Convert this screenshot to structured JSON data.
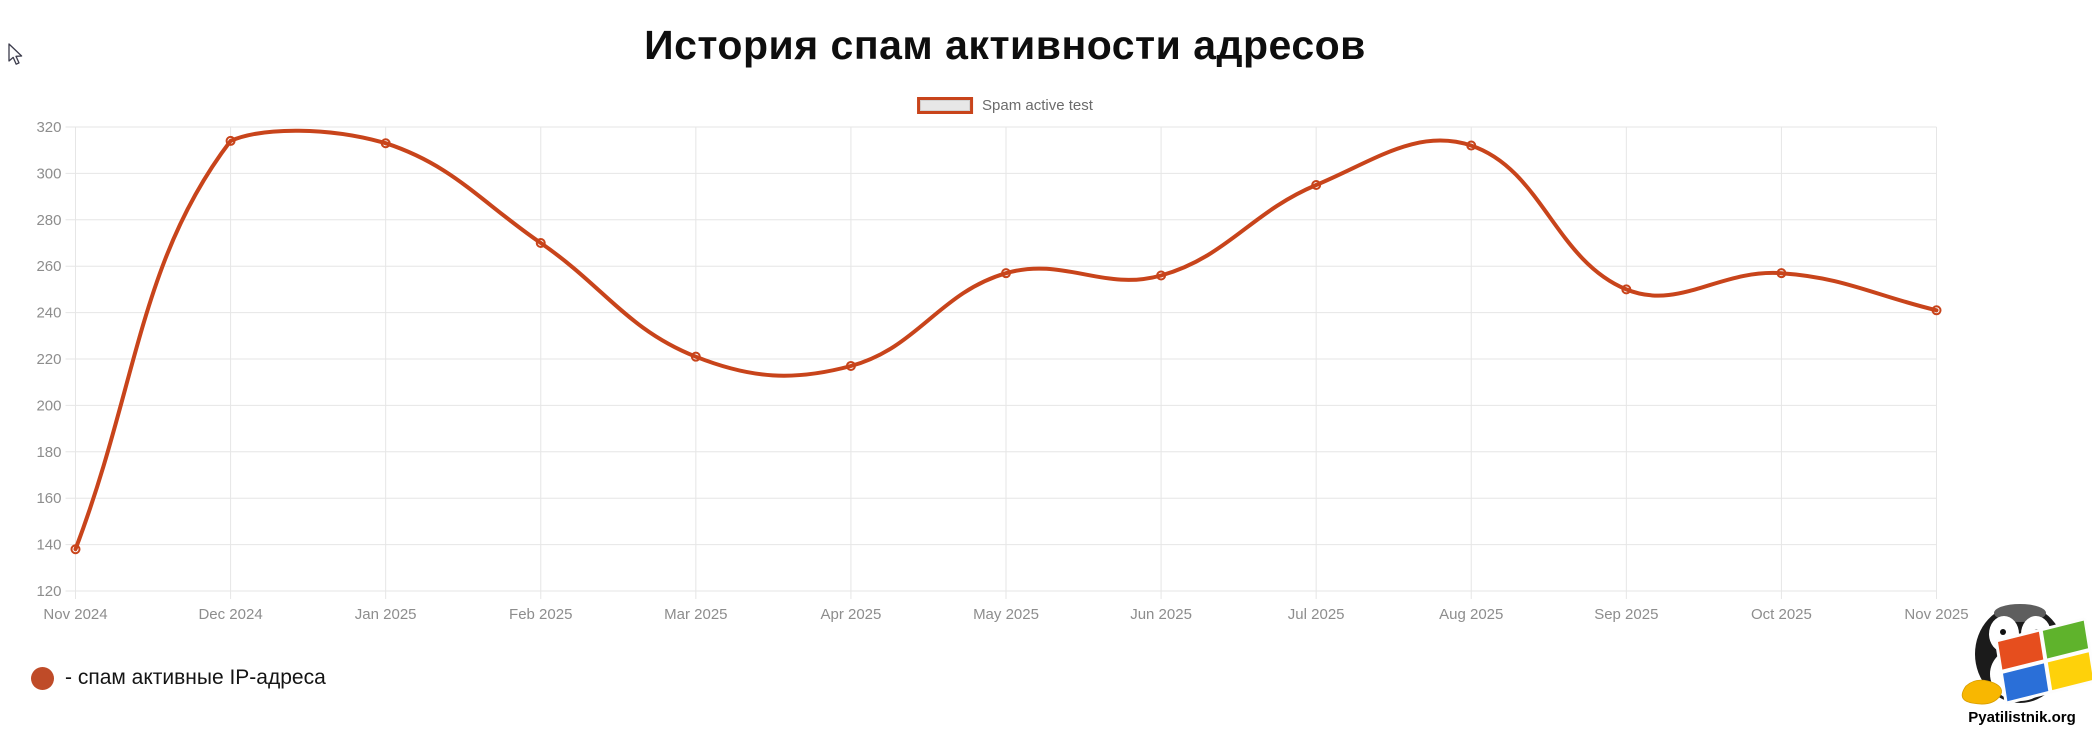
{
  "header": {
    "title": "История спам активности адресов"
  },
  "legend": {
    "label": "Spam active test"
  },
  "footer": {
    "label": "- спам активные IP-адреса"
  },
  "watermark": {
    "text": "Pyatilistnik.org"
  },
  "colors": {
    "line": "#c8441b",
    "grid": "#e6e6e6",
    "axis_label": "#8d8d8d",
    "legend_text": "#6b6b6b",
    "legend_swatch_fill": "#e7e7e7",
    "footer_dot": "#bf4b28",
    "title": "#0e0e0e"
  },
  "chart_data": {
    "type": "line",
    "title": "История спам активности адресов",
    "categories": [
      "Nov 2024",
      "Dec 2024",
      "Jan 2025",
      "Feb 2025",
      "Mar 2025",
      "Apr 2025",
      "May 2025",
      "Jun 2025",
      "Jul 2025",
      "Aug 2025",
      "Sep 2025",
      "Oct 2025",
      "Nov 2025"
    ],
    "series": [
      {
        "name": "Spam active test",
        "values": [
          138,
          314,
          313,
          270,
          221,
          217,
          257,
          256,
          295,
          312,
          250,
          257,
          241
        ]
      }
    ],
    "xlabel": "",
    "ylabel": "",
    "ylim": [
      120,
      320
    ],
    "yticks": [
      120,
      140,
      160,
      180,
      200,
      220,
      240,
      260,
      280,
      300,
      320
    ],
    "ytick_step": 20,
    "grid": true,
    "legend_position": "top",
    "line_tension": 0.4,
    "point_style": "open-circle"
  }
}
